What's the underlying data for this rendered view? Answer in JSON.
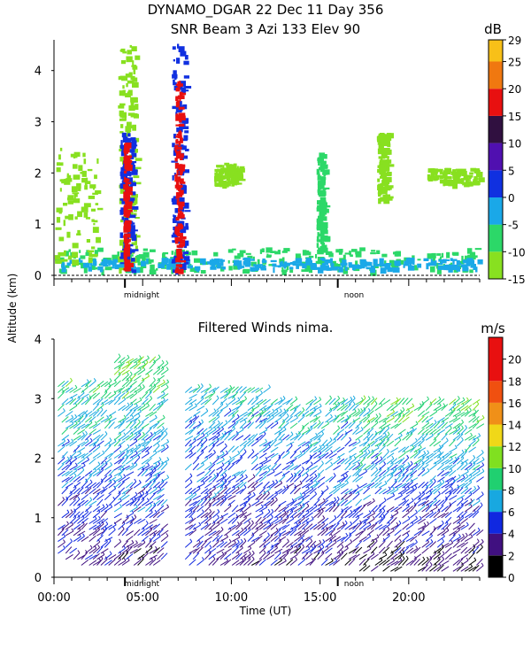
{
  "header": {
    "title_line1": "DYNAMO_DGAR  22 Dec 11 Day 356",
    "title_line2": "SNR Beam 3 Azi 133 Elev 90"
  },
  "shared": {
    "ylabel": "Altitude (km)",
    "xlabel": "Time (UT)",
    "midnight_label": "midnight",
    "noon_label": "noon"
  },
  "chart_data": [
    {
      "type": "heatmap",
      "title": "SNR Beam 3 Azi 133 Elev 90",
      "xlim": [
        0,
        24
      ],
      "ylim": [
        0,
        4.6
      ],
      "y_ticks": [
        0,
        1,
        2,
        3,
        4
      ],
      "colorbar": {
        "unit": "dB",
        "ticks": [
          29,
          25,
          20,
          15,
          10,
          5,
          0,
          -5,
          -10,
          -15
        ],
        "bands": [
          {
            "from": -15,
            "to": -10,
            "color": "#88e020"
          },
          {
            "from": -10,
            "to": -5,
            "color": "#2cd868"
          },
          {
            "from": -5,
            "to": 0,
            "color": "#1aa8e8"
          },
          {
            "from": 0,
            "to": 5,
            "color": "#1030e0"
          },
          {
            "from": 5,
            "to": 10,
            "color": "#5010b0"
          },
          {
            "from": 10,
            "to": 15,
            "color": "#301040"
          },
          {
            "from": 15,
            "to": 20,
            "color": "#e81010"
          },
          {
            "from": 20,
            "to": 25,
            "color": "#f07810"
          },
          {
            "from": 25,
            "to": 29,
            "color": "#f8c018"
          }
        ]
      },
      "features": [
        {
          "t0": 0,
          "t1": 24,
          "h0": 0.1,
          "h1": 0.55,
          "snr": -8
        },
        {
          "t0": 0,
          "t1": 24,
          "h0": 0.15,
          "h1": 0.35,
          "snr": -3
        },
        {
          "t0": 3.6,
          "t1": 4.6,
          "h0": 0.1,
          "h1": 4.5,
          "snr": -12
        },
        {
          "t0": 3.7,
          "t1": 4.4,
          "h0": 0.1,
          "h1": 2.8,
          "snr": 3
        },
        {
          "t0": 3.9,
          "t1": 4.1,
          "h0": 0.1,
          "h1": 2.6,
          "snr": 17
        },
        {
          "t0": 6.6,
          "t1": 7.4,
          "h0": 0.1,
          "h1": 4.6,
          "snr": 3
        },
        {
          "t0": 6.8,
          "t1": 7.1,
          "h0": 0.1,
          "h1": 3.8,
          "snr": 17
        },
        {
          "t0": 0,
          "t1": 2.5,
          "h0": 0.3,
          "h1": 2.5,
          "snr": -12
        },
        {
          "t0": 9,
          "t1": 10.5,
          "h0": 1.8,
          "h1": 2.2,
          "snr": -12
        },
        {
          "t0": 14.8,
          "t1": 15.2,
          "h0": 0.5,
          "h1": 2.4,
          "snr": -8
        },
        {
          "t0": 18.2,
          "t1": 18.8,
          "h0": 1.5,
          "h1": 2.8,
          "snr": -12
        },
        {
          "t0": 21,
          "t1": 24,
          "h0": 1.8,
          "h1": 2.1,
          "snr": -12
        }
      ]
    },
    {
      "type": "scatter",
      "title": "Filtered Winds nima.",
      "xlim": [
        0,
        24
      ],
      "ylim": [
        0,
        4
      ],
      "x_ticks": [
        0,
        5,
        10,
        15,
        20
      ],
      "x_tick_labels": [
        "00:00",
        "05:00",
        "10:00",
        "15:00",
        "20:00"
      ],
      "y_ticks": [
        0,
        1,
        2,
        3,
        4
      ],
      "colorbar": {
        "unit": "m/s",
        "ticks": [
          20,
          18,
          16,
          14,
          12,
          10,
          8,
          6,
          4,
          2,
          0
        ],
        "bands": [
          {
            "from": 0,
            "to": 2,
            "color": "#000000"
          },
          {
            "from": 2,
            "to": 4,
            "color": "#401080"
          },
          {
            "from": 4,
            "to": 6,
            "color": "#1028e0"
          },
          {
            "from": 6,
            "to": 8,
            "color": "#18a8e0"
          },
          {
            "from": 8,
            "to": 10,
            "color": "#20d070"
          },
          {
            "from": 10,
            "to": 12,
            "color": "#80e020"
          },
          {
            "from": 12,
            "to": 14,
            "color": "#f0d818"
          },
          {
            "from": 14,
            "to": 16,
            "color": "#f09018"
          },
          {
            "from": 16,
            "to": 18,
            "color": "#f05010"
          },
          {
            "from": 18,
            "to": 22,
            "color": "#e81010"
          }
        ]
      },
      "wind_columns": [
        {
          "t0": 0,
          "t1": 3.2,
          "h0": 0.2,
          "h1": 3.3,
          "speed_low": 3,
          "speed_high": 9
        },
        {
          "t0": 3.4,
          "t1": 6.2,
          "h0": 0.2,
          "h1": 3.7,
          "speed_low": 3,
          "speed_high": 10
        },
        {
          "t0": 7.4,
          "t1": 12,
          "h0": 0.2,
          "h1": 3.2,
          "speed_low": 3,
          "speed_high": 8
        },
        {
          "t0": 12,
          "t1": 17,
          "h0": 0.2,
          "h1": 3.0,
          "speed_low": 3,
          "speed_high": 8
        },
        {
          "t0": 17,
          "t1": 24,
          "h0": 0.1,
          "h1": 3.0,
          "speed_low": 2,
          "speed_high": 10
        }
      ]
    }
  ]
}
